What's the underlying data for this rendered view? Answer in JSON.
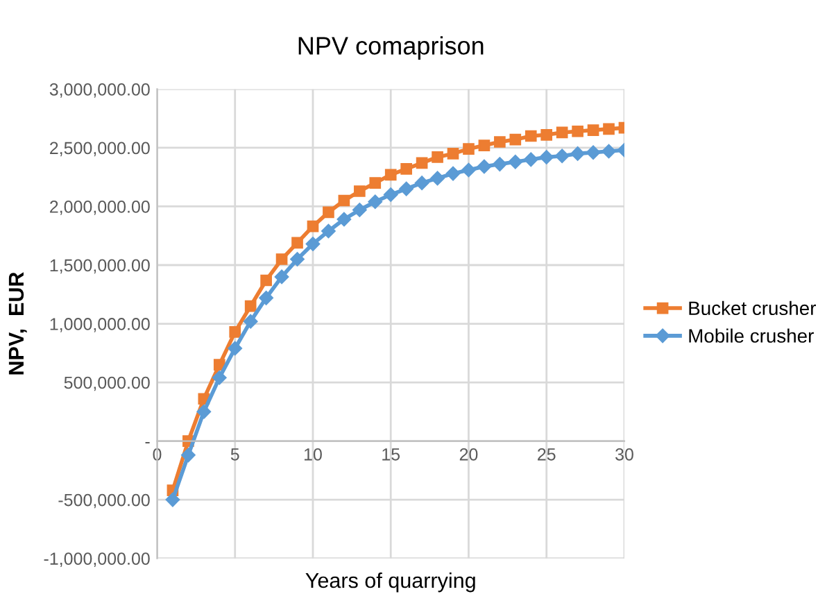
{
  "chart_data": {
    "type": "line",
    "title": "NPV comaprison",
    "xlabel": "Years of quarrying",
    "ylabel": "NPV,  EUR",
    "x": [
      1,
      2,
      3,
      4,
      5,
      6,
      7,
      8,
      9,
      10,
      11,
      12,
      13,
      14,
      15,
      16,
      17,
      18,
      19,
      20,
      21,
      22,
      23,
      24,
      25,
      26,
      27,
      28,
      29,
      30
    ],
    "series": [
      {
        "name": "Bucket crusher",
        "color": "#ed7d31",
        "marker": "square",
        "values": [
          -420000,
          0,
          360000,
          650000,
          930000,
          1150000,
          1370000,
          1550000,
          1690000,
          1830000,
          1950000,
          2050000,
          2130000,
          2200000,
          2270000,
          2320000,
          2370000,
          2420000,
          2450000,
          2490000,
          2520000,
          2550000,
          2570000,
          2600000,
          2610000,
          2630000,
          2640000,
          2650000,
          2660000,
          2670000
        ]
      },
      {
        "name": "Mobile crusher",
        "color": "#5b9bd5",
        "marker": "diamond",
        "values": [
          -500000,
          -120000,
          250000,
          540000,
          790000,
          1020000,
          1220000,
          1400000,
          1550000,
          1680000,
          1790000,
          1890000,
          1970000,
          2040000,
          2100000,
          2150000,
          2200000,
          2240000,
          2280000,
          2310000,
          2340000,
          2360000,
          2380000,
          2400000,
          2420000,
          2430000,
          2450000,
          2460000,
          2470000,
          2480000
        ]
      }
    ],
    "xlim": [
      0,
      30
    ],
    "xticks": [
      0,
      5,
      10,
      15,
      20,
      25,
      30
    ],
    "ylim": [
      -1000000,
      3000000
    ],
    "yticks": [
      {
        "value": -1000000,
        "label": "-1,000,000.00"
      },
      {
        "value": -500000,
        "label": "-500,000.00"
      },
      {
        "value": 0,
        "label": "-"
      },
      {
        "value": 500000,
        "label": "500,000.00"
      },
      {
        "value": 1000000,
        "label": "1,000,000.00"
      },
      {
        "value": 1500000,
        "label": "1,500,000.00"
      },
      {
        "value": 2000000,
        "label": "2,000,000.00"
      },
      {
        "value": 2500000,
        "label": "2,500,000.00"
      },
      {
        "value": 3000000,
        "label": "3,000,000.00"
      }
    ],
    "grid": true,
    "legend": "right",
    "line_style": "solid"
  }
}
